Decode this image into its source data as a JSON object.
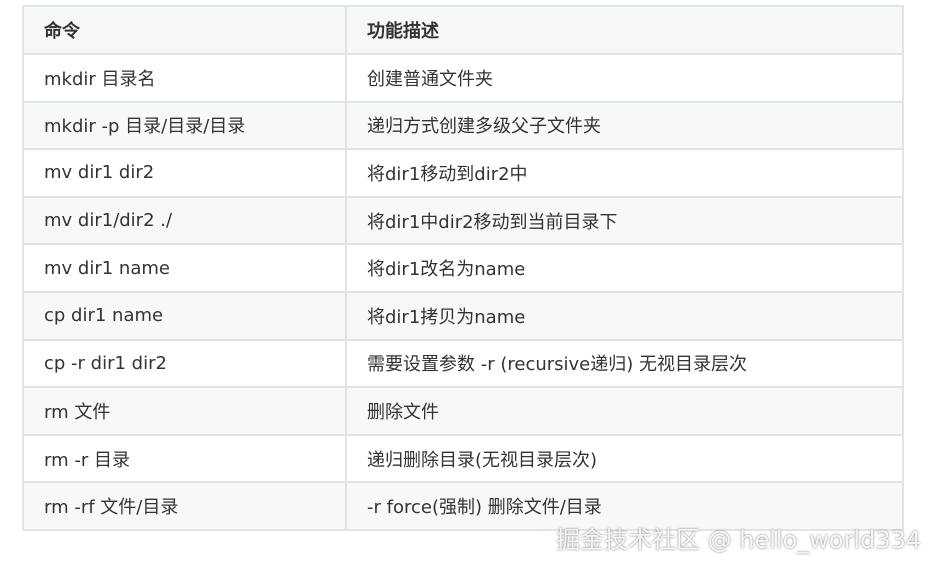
{
  "table": {
    "headers": [
      "命令",
      "功能描述"
    ],
    "rows": [
      [
        "mkdir 目录名",
        "创建普通文件夹"
      ],
      [
        "mkdir -p 目录/目录/目录",
        "递归方式创建多级父子文件夹"
      ],
      [
        "mv dir1 dir2",
        "将dir1移动到dir2中"
      ],
      [
        "mv dir1/dir2 ./",
        "将dir1中dir2移动到当前目录下"
      ],
      [
        "mv dir1 name",
        "将dir1改名为name"
      ],
      [
        "cp dir1 name",
        "将dir1拷贝为name"
      ],
      [
        "cp -r dir1 dir2",
        "需要设置参数 -r (recursive递归) 无视目录层次"
      ],
      [
        "rm 文件",
        "删除文件"
      ],
      [
        "rm -r 目录",
        "递归删除目录(无视目录层次)"
      ],
      [
        "rm -rf 文件/目录",
        "-r force(强制) 删除文件/目录"
      ]
    ]
  },
  "watermark": "掘金技术社区 @ hello_world334"
}
